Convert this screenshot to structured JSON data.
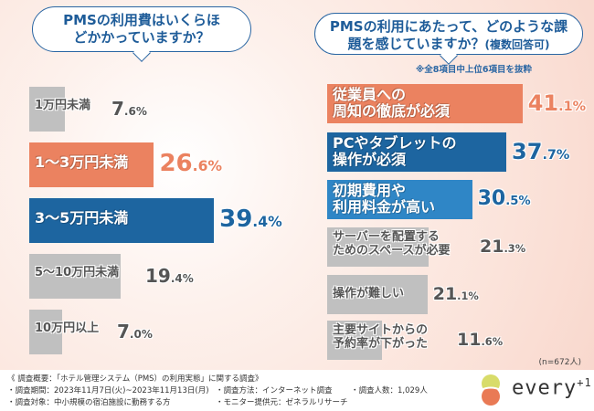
{
  "colors": {
    "orange": "#eb8260",
    "blue": "#1d65a0",
    "gray": "#c0c0c0"
  },
  "chart_data": [
    {
      "type": "bar",
      "orientation": "horizontal",
      "title": "PMSの利用費はいくらほどかかっていますか？",
      "categories": [
        "1万円未満",
        "1〜3万円未満",
        "3〜5万円未満",
        "5〜10万円未満",
        "10万円以上"
      ],
      "values": [
        7.6,
        26.6,
        39.4,
        19.4,
        7.0
      ],
      "unit": "%"
    },
    {
      "type": "bar",
      "orientation": "horizontal",
      "title": "PMSの利用にあたって、どのような課題を感じていますか？",
      "title_suffix": "(複数回答可)",
      "note": "※全8項目中上位6項目を抜粋",
      "categories": [
        "従業員への\n周知の徹底が必須",
        "PCやタブレットの\n操作が必須",
        "初期費用や\n利用料金が高い",
        "サーバーを配置する\nためのスペースが必要",
        "操作が難しい",
        "主要サイトからの\n予約率が下がった"
      ],
      "values": [
        41.1,
        37.7,
        30.5,
        21.3,
        21.1,
        11.6
      ],
      "unit": "%",
      "sample": "(n=672人)"
    }
  ],
  "footer": {
    "overview": "《 調査概要：「ホテル管理システム（PMS）の利用実態」に関する調査》",
    "period": "・調査期間：2023年11月7日(火)~2023年11月13日(月)",
    "method": "・調査方法：インターネット調査",
    "count": "・調査人数：1,029人",
    "target": "・調査対象：中小規模の宿泊施設に勤務する方",
    "provider": "・モニター提供元：ゼネラルリサーチ",
    "logo": "every+1"
  }
}
